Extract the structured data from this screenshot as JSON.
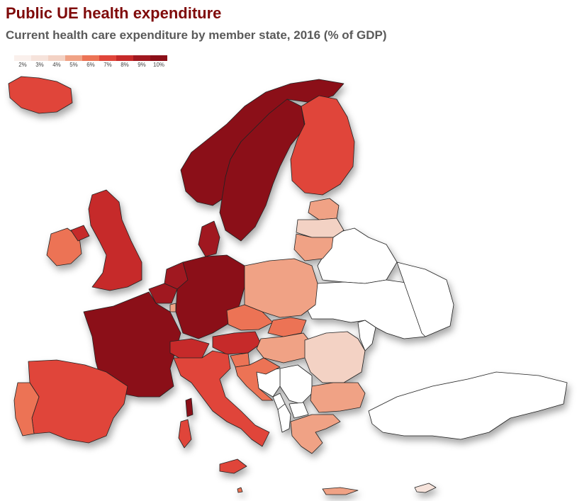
{
  "title": "Public UE health expenditure",
  "subtitle": "Current health care expenditure by member state, 2016 (% of GDP)",
  "legend": {
    "ticks": [
      "2%",
      "3%",
      "4%",
      "5%",
      "6%",
      "7%",
      "8%",
      "9%",
      "10%"
    ],
    "colors": [
      "#faf0ec",
      "#f6e3db",
      "#f3d2c4",
      "#f0a285",
      "#ec7355",
      "#e0453a",
      "#c62a2a",
      "#a01820",
      "#8b0f18"
    ]
  },
  "countries": [
    {
      "name": "Iceland",
      "value": 7.0
    },
    {
      "name": "Norway",
      "value": 10.0
    },
    {
      "name": "Sweden",
      "value": 10.0
    },
    {
      "name": "Finland",
      "value": 7.0
    },
    {
      "name": "Estonia",
      "value": 5.0
    },
    {
      "name": "Latvia",
      "value": 3.5
    },
    {
      "name": "Lithuania",
      "value": 4.5
    },
    {
      "name": "Ireland",
      "value": 5.5
    },
    {
      "name": "United Kingdom",
      "value": 8.0
    },
    {
      "name": "Denmark",
      "value": 9.0
    },
    {
      "name": "Netherlands",
      "value": 8.5
    },
    {
      "name": "Belgium",
      "value": 8.5
    },
    {
      "name": "Luxembourg",
      "value": 5.0
    },
    {
      "name": "Germany",
      "value": 10.0
    },
    {
      "name": "France",
      "value": 10.0
    },
    {
      "name": "Poland",
      "value": 4.5
    },
    {
      "name": "Czechia",
      "value": 6.0
    },
    {
      "name": "Slovakia",
      "value": 6.0
    },
    {
      "name": "Austria",
      "value": 8.0
    },
    {
      "name": "Switzerland",
      "value": 7.5
    },
    {
      "name": "Slovenia",
      "value": 6.0
    },
    {
      "name": "Hungary",
      "value": 4.5
    },
    {
      "name": "Croatia",
      "value": 5.5
    },
    {
      "name": "Romania",
      "value": 3.5
    },
    {
      "name": "Bulgaria",
      "value": 4.5
    },
    {
      "name": "Spain",
      "value": 6.5
    },
    {
      "name": "Portugal",
      "value": 6.0
    },
    {
      "name": "Italy",
      "value": 6.5
    },
    {
      "name": "Greece",
      "value": 5.0
    },
    {
      "name": "Malta",
      "value": 5.5
    },
    {
      "name": "Cyprus",
      "value": 3.0
    }
  ],
  "non_eu": [
    "Belarus",
    "Ukraine",
    "Moldova",
    "Serbia",
    "Bosnia and Herzegovina",
    "Montenegro",
    "Albania",
    "North Macedonia",
    "Kosovo",
    "Turkey",
    "Russia"
  ]
}
